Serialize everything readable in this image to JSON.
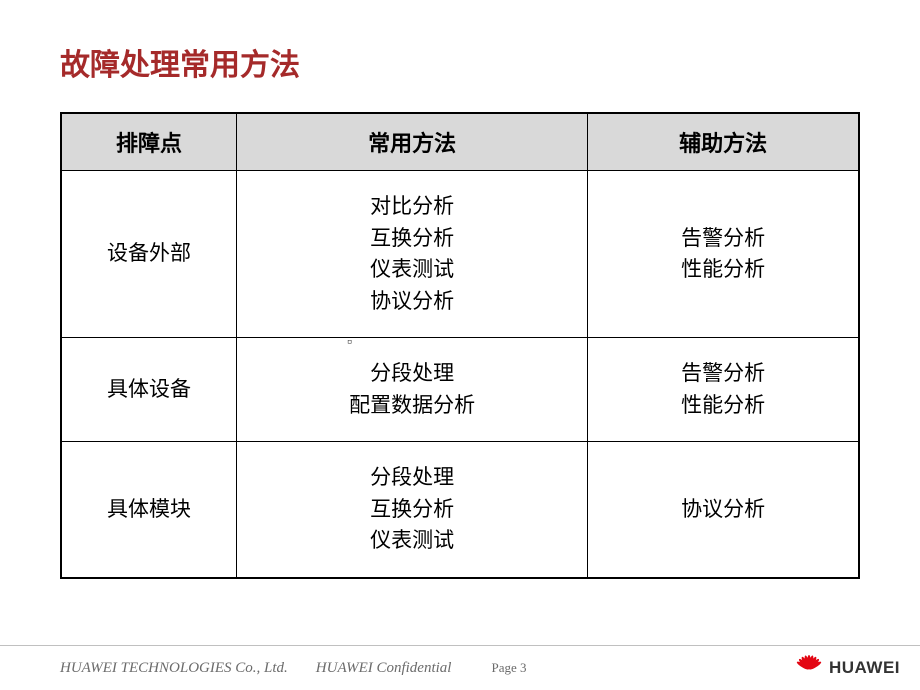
{
  "title": "故障处理常用方法",
  "table": {
    "headers": [
      "排障点",
      "常用方法",
      "辅助方法"
    ],
    "rows": [
      {
        "col1": "设备外部",
        "col2": "对比分析\n互换分析\n仪表测试\n协议分析",
        "col3": "告警分析\n性能分析"
      },
      {
        "col1": "具体设备",
        "col2": "分段处理\n配置数据分析",
        "col3": "告警分析\n性能分析"
      },
      {
        "col1": "具体模块",
        "col2": "分段处理\n互换分析\n仪表测试",
        "col3": "协议分析"
      }
    ]
  },
  "footer": {
    "company": "HUAWEI TECHNOLOGIES Co., Ltd.",
    "confidential": "HUAWEI Confidential",
    "page": "Page 3",
    "logo_text": "HUAWEI"
  },
  "colors": {
    "title_color": "#a52a2a",
    "header_bg": "#d9d9d9",
    "border": "#000000",
    "footer_text": "#6b6b6b",
    "logo_red": "#e30613"
  }
}
